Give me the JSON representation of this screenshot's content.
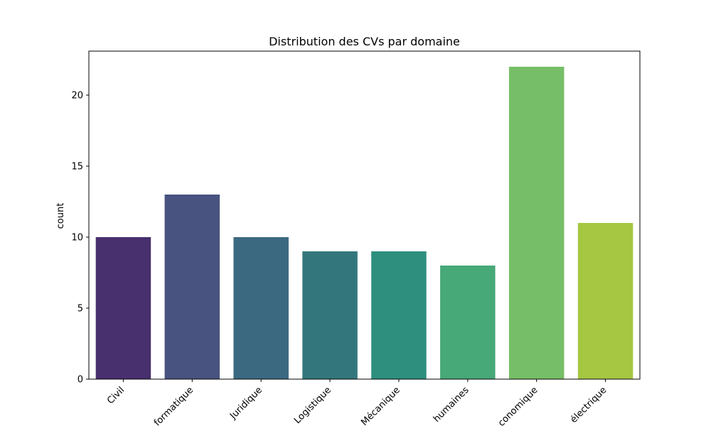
{
  "chart_data": {
    "type": "bar",
    "title": "Distribution des CVs par domaine",
    "xlabel": "",
    "ylabel": "count",
    "categories": [
      "Civil",
      "Informatique",
      "Juridique",
      "Logistique",
      "Mécanique",
      "Ressources humaines",
      "Économique",
      "Électrique"
    ],
    "tick_labels": [
      "Civil",
      "formatique",
      "Juridique",
      "Logistique",
      "Mécanique",
      "humaines",
      "conomique",
      "électrique"
    ],
    "values": [
      10,
      13,
      10,
      9,
      9,
      8,
      22,
      11
    ],
    "colors": [
      "#482f6e",
      "#48537f",
      "#3b6a80",
      "#33777c",
      "#2e8f7f",
      "#47a878",
      "#76be67",
      "#a6c742"
    ],
    "ylim": [
      0,
      23.1
    ],
    "yticks": [
      0,
      5,
      10,
      15,
      20
    ],
    "grid": false,
    "legend": "none"
  }
}
